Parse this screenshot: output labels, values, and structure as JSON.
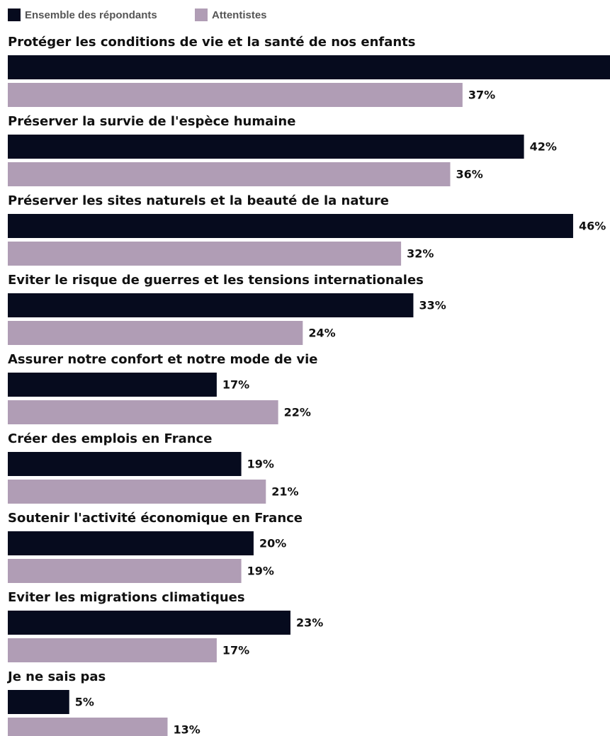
{
  "chart_data": {
    "type": "bar",
    "orientation": "horizontal",
    "categories": [
      "Protéger les conditions de vie et la santé de nos enfants",
      "Préserver la survie de l'espèce humaine",
      "Préserver les sites naturels et la beauté de la nature",
      "Eviter le risque de guerres et les tensions internationales",
      "Assurer notre confort et notre mode de vie",
      "Créer des emplois en France",
      "Soutenir l'activité économique en France",
      "Eviter les migrations climatiques",
      "Je ne sais pas"
    ],
    "series": [
      {
        "name": "Ensemble des répondants",
        "color": "#060b1e",
        "values": [
          49,
          42,
          46,
          33,
          17,
          19,
          20,
          23,
          5
        ],
        "value_labels": [
          null,
          "42%",
          "46%",
          "33%",
          "17%",
          "19%",
          "20%",
          "23%",
          "5%"
        ]
      },
      {
        "name": "Attentistes",
        "color": "#b09db5",
        "values": [
          37,
          36,
          32,
          24,
          22,
          21,
          19,
          17,
          13
        ],
        "value_labels": [
          "37%",
          "36%",
          "32%",
          "24%",
          "22%",
          "21%",
          "19%",
          "17%",
          "13%"
        ]
      }
    ],
    "xlim": [
      0,
      49
    ],
    "legend": "top-left"
  }
}
